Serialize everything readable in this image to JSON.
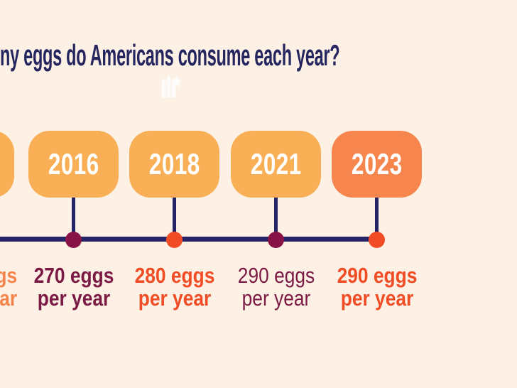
{
  "canvas": {
    "background": "#FCF1E4"
  },
  "title": {
    "text": "ny eggs do Americans consume each year?",
    "color": "#25265F"
  },
  "watermark": {
    "icon": "castle-badge-icon",
    "color": "#FFFFFF"
  },
  "timeline": {
    "line_color": "#272465",
    "year_text_color": "#FFFFFF",
    "entries": [
      {
        "year": "",
        "partial": true,
        "box_color": "#F8AF55",
        "dot_color": "",
        "label_line1": "gs",
        "label_line2": "ar",
        "label_color": "#F2854D",
        "label_weight": "bold"
      },
      {
        "year": "2016",
        "partial": false,
        "box_color": "#F8AF55",
        "dot_color": "#871245",
        "label_line1": "270 eggs",
        "label_line2": "per year",
        "label_color": "#7B1A44",
        "label_weight": "bold"
      },
      {
        "year": "2018",
        "partial": false,
        "box_color": "#F8AF55",
        "dot_color": "#F04D26",
        "label_line1": "280 eggs",
        "label_line2": "per year",
        "label_color": "#F04D26",
        "label_weight": "bold"
      },
      {
        "year": "2021",
        "partial": false,
        "box_color": "#F8AF55",
        "dot_color": "#871245",
        "label_line1": "290 eggs",
        "label_line2": "per year",
        "label_color": "#7B1A44",
        "label_weight": "regular"
      },
      {
        "year": "2023",
        "partial": false,
        "box_color": "#F6864E",
        "dot_color": "#F04D26",
        "label_line1": "290 eggs",
        "label_line2": "per year",
        "label_color": "#F04D26",
        "label_weight": "bold"
      }
    ]
  },
  "chart_data": {
    "type": "table",
    "layout_hint": "horizontal timeline infographic; year boxes above axis, dots on axis, value labels below; title and leftmost entry cut off at left edge",
    "title": "ny eggs do Americans consume each year?",
    "categories": [
      "2016",
      "2018",
      "2021",
      "2023"
    ],
    "values": [
      270,
      280,
      290,
      290
    ],
    "value_unit": "eggs per year"
  }
}
